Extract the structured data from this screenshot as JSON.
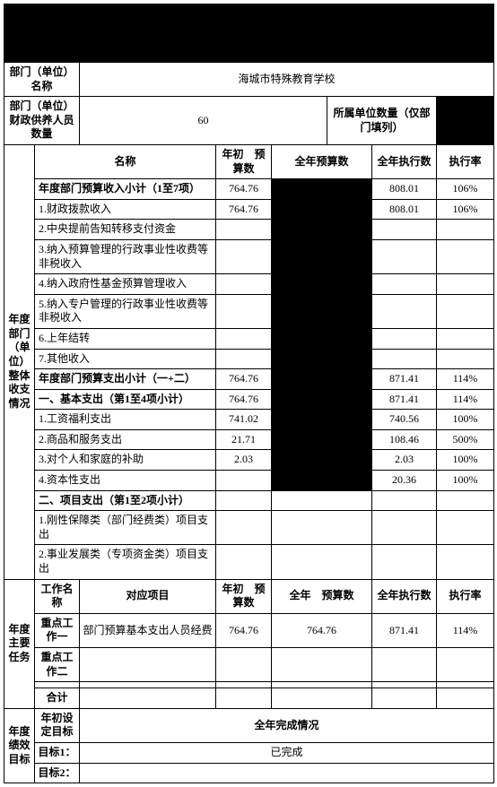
{
  "header": {
    "dept_label": "部门（单位）名称",
    "dept_name": "海城市特殊教育学校",
    "staff_label": "部门（单位）财政供养人员数量",
    "staff_value": "60",
    "sub_units_label": "所属单位数量（仅部门填列）",
    "sub_units_value": ""
  },
  "cols": {
    "name": "名称",
    "budget_begin": "年初　预算数",
    "budget_year": "全年预算数",
    "exec_year": "全年执行数",
    "exec_rate": "执行率"
  },
  "side": {
    "income_exp": "年度部门（单位）整体收支情况",
    "tasks": "年度主要任务",
    "goals": "年度绩效目标"
  },
  "rows": [
    {
      "n": "年度部门预算收入小计（1至7项）",
      "b": "764.76",
      "e": "808.01",
      "r": "106%",
      "bold": true,
      "dark": true
    },
    {
      "n": "1.财政拨款收入",
      "b": "764.76",
      "e": "808.01",
      "r": "106%",
      "dark": true
    },
    {
      "n": "2.中央提前告知转移支付资金",
      "b": "",
      "e": "",
      "r": "",
      "dark": true
    },
    {
      "n": "3.纳入预算管理的行政事业性收费等非税收入",
      "b": "",
      "e": "",
      "r": "",
      "dark": true
    },
    {
      "n": "4.纳入政府性基金预算管理收入",
      "b": "",
      "e": "",
      "r": "",
      "dark": true
    },
    {
      "n": "5.纳入专户管理的行政事业性收费等非税收入",
      "b": "",
      "e": "",
      "r": "",
      "dark": true
    },
    {
      "n": "6.上年结转",
      "b": "",
      "e": "",
      "r": "",
      "dark": true
    },
    {
      "n": "7.其他收入",
      "b": "",
      "e": "",
      "r": "",
      "dark": true
    },
    {
      "n": "年度部门预算支出小计（一+二）",
      "b": "764.76",
      "e": "871.41",
      "r": "114%",
      "bold": true,
      "dark": true
    },
    {
      "n": "一、基本支出（第1至4项小计）",
      "b": "764.76",
      "e": "871.41",
      "r": "114%",
      "bold": true,
      "dark": true
    },
    {
      "n": "1.工资福利支出",
      "b": "741.02",
      "e": "740.56",
      "r": "100%",
      "dark": true
    },
    {
      "n": "2.商品和服务支出",
      "b": "21.71",
      "e": "108.46",
      "r": "500%",
      "dark": true
    },
    {
      "n": "3.对个人和家庭的补助",
      "b": "2.03",
      "e": "2.03",
      "r": "100%",
      "dark": true
    },
    {
      "n": "4.资本性支出",
      "b": "",
      "e": "20.36",
      "r": "100%",
      "dark": true
    },
    {
      "n": "二、项目支出（第1至2项小计）",
      "b": "",
      "e": "",
      "r": "",
      "bold": true,
      "dark": false
    },
    {
      "n": "1.刚性保障类（部门经费类）项目支出",
      "b": "",
      "e": "",
      "r": "",
      "dark": false
    },
    {
      "n": "2.事业发展类（专项资金类）项目支出",
      "b": "",
      "e": "",
      "r": "",
      "dark": false
    }
  ],
  "tasks": {
    "hcols": {
      "work": "工作名称",
      "proj": "对应项目",
      "b": "年初　预算数",
      "y": "全年　预算数",
      "e": "全年执行数",
      "r": "执行率"
    },
    "r1": {
      "w": "重点工作一",
      "p": "部门预算基本支出人员经费",
      "b": "764.76",
      "y": "764.76",
      "e": "871.41",
      "r": "114%"
    },
    "r2": {
      "w": "重点工作二",
      "p": "",
      "b": "",
      "y": "",
      "e": "",
      "r": ""
    },
    "r3": {
      "w": "",
      "p": "",
      "b": "",
      "y": "",
      "e": "",
      "r": ""
    },
    "sum": {
      "w": "合计",
      "p": "",
      "b": "",
      "y": "",
      "e": "",
      "r": ""
    }
  },
  "goals": {
    "set_label": "年初设定目标",
    "done_label": "全年完成情况",
    "g1_label": "目标1：",
    "g1_val": "已完成",
    "g2_label": "目标2：",
    "g2_val": ""
  }
}
